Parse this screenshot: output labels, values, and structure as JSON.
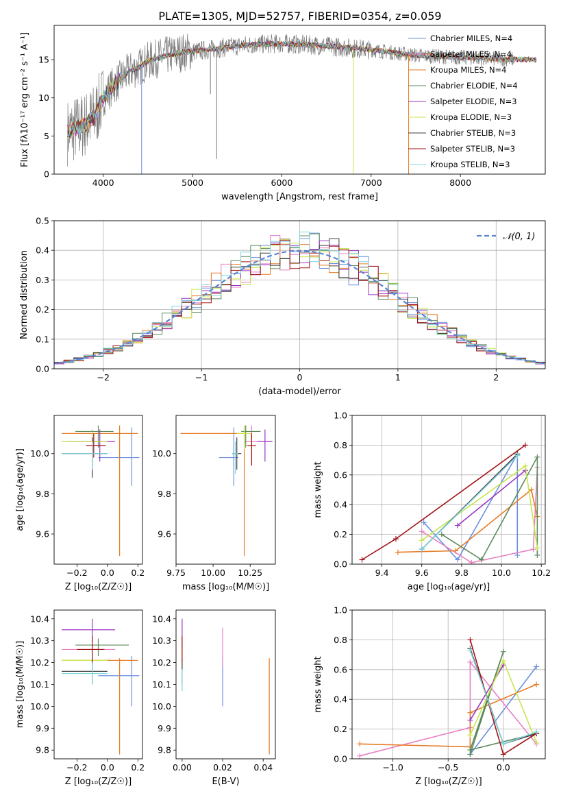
{
  "figure": {
    "title": "PLATE=1305, MJD=52757, FIBERID=0354, z=0.059"
  },
  "model_colors": {
    "Chabrier MILES": "#6a8fdf",
    "Salpeter MILES": "#e87fc2",
    "Kroupa MILES": "#e67a24",
    "Chabrier ELODIE": "#5b8a5c",
    "Salpeter ELODIE": "#9b35c2",
    "Kroupa ELODIE": "#c8e64a",
    "Chabrier STELIB": "#3d3d3d",
    "Salpeter STELIB": "#a21316",
    "Kroupa STELIB": "#7fd4dc",
    "data": "#7a7a7a"
  },
  "chart_data": [
    {
      "id": "spectrum",
      "type": "line",
      "title": "PLATE=1305, MJD=52757, FIBERID=0354, z=0.059",
      "xlabel": "wavelength [Angstrom, rest frame]",
      "ylabel": "Flux [fλ10⁻¹⁷ erg cm⁻² s⁻¹ A⁻¹]",
      "xlim": [
        3450,
        8950
      ],
      "ylim": [
        0,
        19.5
      ],
      "xticks": [
        4000,
        5000,
        6000,
        7000,
        8000
      ],
      "yticks": [
        0,
        5,
        10,
        15
      ],
      "legend_position": "upper right",
      "legend": [
        "Chabrier MILES, N_SSP=4",
        "Salpeter MILES, N_SSP=4",
        "Kroupa MILES, N_SSP=4",
        "Chabrier ELODIE, N_SSP=4",
        "Salpeter ELODIE, N_SSP=3",
        "Kroupa ELODIE, N_SSP=3",
        "Chabrier STELIB, N_SSP=3",
        "Salpeter STELIB, N_SSP=3",
        "Kroupa STELIB, N_SSP=3"
      ],
      "continuum": {
        "x": [
          3600,
          3700,
          3800,
          3900,
          4000,
          4100,
          4200,
          4300,
          4400,
          4500,
          4700,
          4900,
          5100,
          5300,
          5500,
          5700,
          6000,
          6200,
          6500,
          6700,
          7000,
          7200,
          7400,
          7600,
          8000,
          8400,
          8800
        ],
        "y": [
          5.5,
          6.0,
          6.5,
          7.5,
          10.0,
          11.5,
          12.5,
          13.5,
          14.0,
          14.8,
          15.5,
          16.0,
          16.2,
          16.5,
          16.8,
          17.0,
          17.1,
          17.0,
          16.8,
          16.6,
          16.3,
          16.0,
          15.7,
          15.5,
          15.3,
          15.1,
          15.0
        ]
      },
      "absorption_features": [
        {
          "x": 4430,
          "depth": 0.0,
          "series": "Chabrier MILES"
        },
        {
          "x": 5200,
          "depth": 10.5
        },
        {
          "x": 5270,
          "depth": 2.0
        },
        {
          "x": 6800,
          "depth": 0.0,
          "series": "Kroupa ELODIE"
        },
        {
          "x": 7420,
          "depth": 0.0,
          "series": "Kroupa MILES"
        }
      ]
    },
    {
      "id": "residuals",
      "type": "histogram",
      "xlabel": "(data-model)/error",
      "ylabel": "Normed distribution",
      "xlim": [
        -2.5,
        2.5
      ],
      "ylim": [
        0,
        0.5
      ],
      "xticks": [
        -2,
        -1,
        0,
        1,
        2
      ],
      "yticks": [
        0.0,
        0.1,
        0.2,
        0.3,
        0.4,
        0.5
      ],
      "grid": true,
      "legend_position": "upper right",
      "reference_curve": {
        "label": "𝒩(0, 1)",
        "mean": 0,
        "sigma": 1,
        "style": "dashed",
        "color": "#5b84d6"
      },
      "bin_width": 0.1
    },
    {
      "id": "age_vs_Z",
      "type": "errorbar",
      "xlabel": "Z [log₁₀(Z/Z☉)]",
      "ylabel": "age  [log₁₀(age/yr)]",
      "xlim": [
        -0.35,
        0.23
      ],
      "ylim": [
        9.45,
        10.19
      ],
      "xticks": [
        -0.2,
        0.0,
        0.2
      ],
      "yticks": [
        9.6,
        9.8,
        10.0
      ],
      "points": [
        {
          "model": "Chabrier MILES",
          "x": 0.16,
          "xerr": [
            0.22,
            0.05
          ],
          "y": 9.98,
          "yerr": [
            0.14,
            0.15
          ]
        },
        {
          "model": "Salpeter MILES",
          "x": -0.1,
          "xerr": [
            0.2,
            0.1
          ],
          "y": 10.06,
          "yerr": [
            0.12,
            0.06
          ]
        },
        {
          "model": "Kroupa MILES",
          "x": 0.08,
          "xerr": [
            0.38,
            0.12
          ],
          "y": 10.1,
          "yerr": [
            0.61,
            0.04
          ]
        },
        {
          "model": "Chabrier ELODIE",
          "x": -0.06,
          "xerr": [
            0.15,
            0.1
          ],
          "y": 10.11,
          "yerr": [
            0.08,
            0.03
          ]
        },
        {
          "model": "Salpeter ELODIE",
          "x": -0.05,
          "xerr": [
            0.2,
            0.1
          ],
          "y": 10.06,
          "yerr": [
            0.1,
            0.06
          ]
        },
        {
          "model": "Kroupa ELODIE",
          "x": -0.1,
          "xerr": [
            0.2,
            0.1
          ],
          "y": 10.06,
          "yerr": [
            0.1,
            0.05
          ]
        },
        {
          "model": "Chabrier STELIB",
          "x": -0.1,
          "xerr": [
            0.2,
            0.1
          ],
          "y": 10.0,
          "yerr": [
            0.12,
            0.08
          ]
        },
        {
          "model": "Salpeter STELIB",
          "x": -0.09,
          "xerr": [
            0.05,
            0.08
          ],
          "y": 10.04,
          "yerr": [
            0.06,
            0.06
          ]
        },
        {
          "model": "Kroupa STELIB",
          "x": -0.1,
          "xerr": [
            0.2,
            0.1
          ],
          "y": 10.0,
          "yerr": [
            0.08,
            0.06
          ]
        }
      ]
    },
    {
      "id": "age_vs_mass",
      "type": "errorbar",
      "xlabel": "mass [log₁₀(M/M☉)]",
      "xlim": [
        9.75,
        10.42
      ],
      "ylim": [
        9.45,
        10.19
      ],
      "xticks": [
        9.75,
        10.0,
        10.25
      ],
      "yticks": [
        9.6,
        9.8,
        10.0
      ],
      "points": [
        {
          "model": "Chabrier MILES",
          "x": 10.14,
          "xerr": [
            0.1,
            0.03
          ],
          "y": 9.98,
          "yerr": [
            0.14,
            0.15
          ]
        },
        {
          "model": "Salpeter MILES",
          "x": 10.26,
          "xerr": [
            0.05,
            0.05
          ],
          "y": 10.06,
          "yerr": [
            0.12,
            0.08
          ]
        },
        {
          "model": "Kroupa MILES",
          "x": 10.21,
          "xerr": [
            0.43,
            0.01
          ],
          "y": 10.1,
          "yerr": [
            0.61,
            0.04
          ]
        },
        {
          "model": "Chabrier ELODIE",
          "x": 10.22,
          "xerr": [
            0.03,
            0.1
          ],
          "y": 10.11,
          "yerr": [
            0.08,
            0.03
          ]
        },
        {
          "model": "Salpeter ELODIE",
          "x": 10.35,
          "xerr": [
            0.05,
            0.05
          ],
          "y": 10.06,
          "yerr": [
            0.1,
            0.06
          ]
        },
        {
          "model": "Kroupa ELODIE",
          "x": 10.21,
          "xerr": [
            0.05,
            0.05
          ],
          "y": 10.1,
          "yerr": [
            0.08,
            0.04
          ]
        },
        {
          "model": "Chabrier STELIB",
          "x": 10.16,
          "xerr": [
            0.03,
            0.03
          ],
          "y": 10.0,
          "yerr": [
            0.08,
            0.08
          ]
        },
        {
          "model": "Salpeter STELIB",
          "x": 10.26,
          "xerr": [
            0.03,
            0.03
          ],
          "y": 10.04,
          "yerr": [
            0.1,
            0.06
          ]
        },
        {
          "model": "Kroupa STELIB",
          "x": 10.15,
          "xerr": [
            0.02,
            0.02
          ],
          "y": 10.0,
          "yerr": [
            0.1,
            0.06
          ]
        }
      ]
    },
    {
      "id": "mass_weight_vs_age",
      "type": "line",
      "xlabel": "age  [log₁₀(age/yr)]",
      "ylabel": "mass weight",
      "xlim": [
        9.25,
        10.22
      ],
      "ylim": [
        0,
        1.0
      ],
      "xticks": [
        9.4,
        9.6,
        9.8,
        10.0,
        10.2
      ],
      "yticks": [
        0.0,
        0.2,
        0.4,
        0.6,
        0.8,
        1.0
      ],
      "grid": true,
      "series": [
        {
          "model": "Chabrier MILES",
          "x": [
            9.61,
            9.78,
            10.08,
            10.08
          ],
          "y": [
            0.28,
            0.03,
            0.74,
            0.06
          ]
        },
        {
          "model": "Salpeter MILES",
          "x": [
            9.6,
            9.85,
            10.16,
            10.18
          ],
          "y": [
            0.22,
            0.01,
            0.1,
            0.65
          ]
        },
        {
          "model": "Kroupa MILES",
          "x": [
            9.48,
            9.77,
            10.15,
            10.18
          ],
          "y": [
            0.08,
            0.09,
            0.5,
            0.32
          ]
        },
        {
          "model": "Chabrier ELODIE",
          "x": [
            9.7,
            9.9,
            10.18,
            10.18
          ],
          "y": [
            0.2,
            0.03,
            0.72,
            0.06
          ]
        },
        {
          "model": "Salpeter ELODIE",
          "x": [
            9.78,
            10.12
          ],
          "y": [
            0.26,
            0.63
          ]
        },
        {
          "model": "Kroupa ELODIE",
          "x": [
            9.6,
            10.12,
            10.18
          ],
          "y": [
            0.16,
            0.66,
            0.11
          ]
        },
        {
          "model": "Chabrier STELIB",
          "x": [
            9.6,
            10.08
          ],
          "y": [
            0.1,
            0.74
          ]
        },
        {
          "model": "Salpeter STELIB",
          "x": [
            9.3,
            9.47,
            10.12
          ],
          "y": [
            0.03,
            0.17,
            0.8
          ]
        },
        {
          "model": "Kroupa STELIB",
          "x": [
            9.6,
            10.08
          ],
          "y": [
            0.1,
            0.73
          ]
        }
      ]
    },
    {
      "id": "mass_vs_Z",
      "type": "errorbar",
      "xlabel": "Z [log₁₀(Z/Z☉)]",
      "ylabel": "mass [log₁₀(M/M☉)]",
      "xlim": [
        -0.35,
        0.23
      ],
      "ylim": [
        9.76,
        10.44
      ],
      "xticks": [
        -0.2,
        0.0,
        0.2
      ],
      "yticks": [
        9.8,
        9.9,
        10.0,
        10.1,
        10.2,
        10.3,
        10.4
      ],
      "points": [
        {
          "model": "Chabrier MILES",
          "x": 0.16,
          "xerr": [
            0.22,
            0.05
          ],
          "y": 10.14,
          "yerr": [
            0.14,
            0.09
          ]
        },
        {
          "model": "Salpeter MILES",
          "x": -0.1,
          "xerr": [
            0.2,
            0.15
          ],
          "y": 10.26,
          "yerr": [
            0.08,
            0.06
          ]
        },
        {
          "model": "Kroupa MILES",
          "x": 0.08,
          "xerr": [
            0.38,
            0.12
          ],
          "y": 10.21,
          "yerr": [
            0.43,
            0.01
          ]
        },
        {
          "model": "Chabrier ELODIE",
          "x": -0.06,
          "xerr": [
            0.15,
            0.2
          ],
          "y": 10.28,
          "yerr": [
            0.05,
            0.03
          ]
        },
        {
          "model": "Salpeter ELODIE",
          "x": -0.1,
          "xerr": [
            0.2,
            0.15
          ],
          "y": 10.35,
          "yerr": [
            0.05,
            0.05
          ]
        },
        {
          "model": "Kroupa ELODIE",
          "x": -0.1,
          "xerr": [
            0.2,
            0.1
          ],
          "y": 10.21,
          "yerr": [
            0.05,
            0.05
          ]
        },
        {
          "model": "Chabrier STELIB",
          "x": -0.1,
          "xerr": [
            0.2,
            0.1
          ],
          "y": 10.16,
          "yerr": [
            0.06,
            0.06
          ]
        },
        {
          "model": "Salpeter STELIB",
          "x": -0.1,
          "xerr": [
            0.1,
            0.08
          ],
          "y": 10.26,
          "yerr": [
            0.06,
            0.06
          ]
        },
        {
          "model": "Kroupa STELIB",
          "x": -0.1,
          "xerr": [
            0.2,
            0.1
          ],
          "y": 10.15,
          "yerr": [
            0.05,
            0.05
          ]
        }
      ]
    },
    {
      "id": "mass_vs_EBV",
      "type": "errorbar",
      "xlabel": "E(B-V)",
      "xlim": [
        -0.003,
        0.046
      ],
      "ylim": [
        9.76,
        10.44
      ],
      "xticks": [
        0.0,
        0.02,
        0.04
      ],
      "yticks": [
        9.8,
        9.9,
        10.0,
        10.1,
        10.2,
        10.3,
        10.4
      ],
      "points": [
        {
          "model": "Chabrier MILES",
          "x": 0.02,
          "y": 10.14,
          "yerr": [
            0.14,
            0.09
          ]
        },
        {
          "model": "Salpeter MILES",
          "x": 0.02,
          "y": 10.26,
          "yerr": [
            0.08,
            0.1
          ]
        },
        {
          "model": "Kroupa MILES",
          "x": 0.043,
          "y": 10.0,
          "yerr": [
            0.22,
            0.22
          ]
        },
        {
          "model": "Chabrier ELODIE",
          "x": 0.0,
          "y": 10.28,
          "yerr": [
            0.05,
            0.03
          ]
        },
        {
          "model": "Salpeter ELODIE",
          "x": 0.0,
          "y": 10.35,
          "yerr": [
            0.05,
            0.05
          ]
        },
        {
          "model": "Kroupa ELODIE",
          "x": 0.0,
          "y": 10.21,
          "yerr": [
            0.05,
            0.05
          ]
        },
        {
          "model": "Chabrier STELIB",
          "x": 0.0,
          "y": 10.16,
          "yerr": [
            0.06,
            0.06
          ]
        },
        {
          "model": "Salpeter STELIB",
          "x": 0.0,
          "y": 10.26,
          "yerr": [
            0.06,
            0.06
          ]
        },
        {
          "model": "Kroupa STELIB",
          "x": 0.0,
          "y": 10.12,
          "yerr": [
            0.05,
            0.05
          ]
        }
      ]
    },
    {
      "id": "mass_weight_vs_Z",
      "type": "line",
      "xlabel": "Z [log₁₀(Z/Z☉)]",
      "ylabel": "mass weight",
      "xlim": [
        -1.37,
        0.38
      ],
      "ylim": [
        0,
        1.0
      ],
      "xticks": [
        -1.0,
        -0.5,
        0.0
      ],
      "yticks": [
        0.0,
        0.2,
        0.4,
        0.6,
        0.8,
        1.0
      ],
      "grid": true,
      "series": [
        {
          "model": "Chabrier MILES",
          "x": [
            -0.3,
            0.3
          ],
          "y": [
            0.03,
            0.62
          ]
        },
        {
          "model": "Salpeter MILES",
          "x": [
            -1.3,
            -0.3,
            -0.3,
            0.3
          ],
          "y": [
            0.02,
            0.21,
            0.65,
            0.1
          ]
        },
        {
          "model": "Kroupa MILES",
          "x": [
            -1.3,
            -0.3,
            -0.3,
            0.3
          ],
          "y": [
            0.1,
            0.08,
            0.31,
            0.5
          ]
        },
        {
          "model": "Chabrier ELODIE",
          "x": [
            -0.3,
            0.0,
            -0.3,
            0.3
          ],
          "y": [
            0.03,
            0.72,
            0.06,
            0.17
          ]
        },
        {
          "model": "Salpeter ELODIE",
          "x": [
            -0.3,
            0.0
          ],
          "y": [
            0.26,
            0.63
          ]
        },
        {
          "model": "Kroupa ELODIE",
          "x": [
            -0.3,
            0.0,
            0.3
          ],
          "y": [
            0.16,
            0.66,
            0.11
          ]
        },
        {
          "model": "Chabrier STELIB",
          "x": [
            -0.3,
            0.0,
            0.3
          ],
          "y": [
            0.74,
            0.1,
            0.17
          ]
        },
        {
          "model": "Salpeter STELIB",
          "x": [
            -0.3,
            0.0,
            0.3
          ],
          "y": [
            0.8,
            0.03,
            0.17
          ]
        },
        {
          "model": "Kroupa STELIB",
          "x": [
            -0.3,
            0.0,
            0.3
          ],
          "y": [
            0.73,
            0.1,
            0.18
          ]
        }
      ]
    }
  ]
}
